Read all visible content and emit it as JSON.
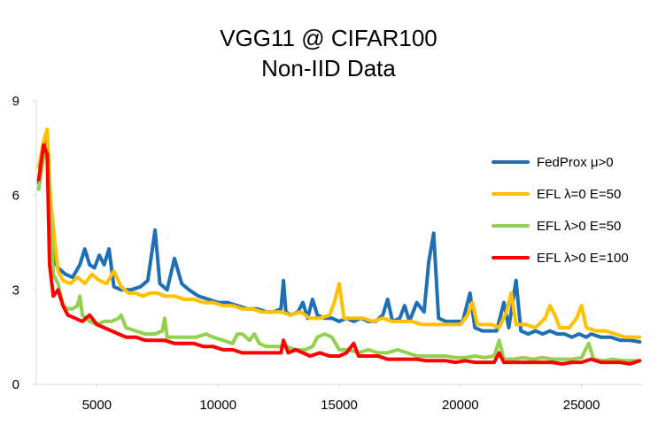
{
  "chart_data": {
    "type": "line",
    "title": "VGG11 @ CIFAR100",
    "subtitle": "Non-IID Data",
    "xlabel": "",
    "ylabel": "",
    "xlim": [
      2500,
      27500
    ],
    "ylim": [
      0,
      9
    ],
    "xticks": [
      5000,
      10000,
      15000,
      20000,
      25000
    ],
    "yticks": [
      0,
      3,
      6,
      9
    ],
    "grid": false,
    "legend_position": "right",
    "series": [
      {
        "name": "FedProx μ>0",
        "color": "#1f6fb5",
        "points": [
          [
            2600,
            6.4
          ],
          [
            2800,
            7.4
          ],
          [
            2950,
            7.8
          ],
          [
            3100,
            5.5
          ],
          [
            3200,
            4.0
          ],
          [
            3400,
            3.7
          ],
          [
            3700,
            3.5
          ],
          [
            4000,
            3.4
          ],
          [
            4300,
            3.8
          ],
          [
            4500,
            4.3
          ],
          [
            4700,
            3.8
          ],
          [
            4900,
            3.7
          ],
          [
            5100,
            4.1
          ],
          [
            5300,
            3.8
          ],
          [
            5500,
            4.3
          ],
          [
            5700,
            3.1
          ],
          [
            6000,
            3.0
          ],
          [
            6400,
            3.0
          ],
          [
            6800,
            3.1
          ],
          [
            7100,
            3.3
          ],
          [
            7400,
            4.9
          ],
          [
            7600,
            3.2
          ],
          [
            7900,
            3.0
          ],
          [
            8200,
            4.0
          ],
          [
            8500,
            3.2
          ],
          [
            8800,
            3.0
          ],
          [
            9200,
            2.8
          ],
          [
            9600,
            2.7
          ],
          [
            10000,
            2.6
          ],
          [
            10400,
            2.6
          ],
          [
            10800,
            2.5
          ],
          [
            11200,
            2.4
          ],
          [
            11600,
            2.4
          ],
          [
            12000,
            2.3
          ],
          [
            12300,
            2.3
          ],
          [
            12600,
            2.4
          ],
          [
            12700,
            3.3
          ],
          [
            12800,
            2.3
          ],
          [
            13000,
            2.2
          ],
          [
            13300,
            2.3
          ],
          [
            13500,
            2.6
          ],
          [
            13700,
            2.1
          ],
          [
            13900,
            2.7
          ],
          [
            14100,
            2.2
          ],
          [
            14400,
            2.1
          ],
          [
            14700,
            2.1
          ],
          [
            15000,
            2.0
          ],
          [
            15300,
            2.1
          ],
          [
            15600,
            2.0
          ],
          [
            15900,
            2.1
          ],
          [
            16200,
            2.0
          ],
          [
            16500,
            2.0
          ],
          [
            16800,
            2.2
          ],
          [
            17000,
            2.7
          ],
          [
            17200,
            2.0
          ],
          [
            17500,
            2.1
          ],
          [
            17700,
            2.5
          ],
          [
            17900,
            2.0
          ],
          [
            18200,
            2.6
          ],
          [
            18500,
            2.3
          ],
          [
            18700,
            3.9
          ],
          [
            18900,
            4.8
          ],
          [
            19100,
            2.1
          ],
          [
            19400,
            2.0
          ],
          [
            19800,
            2.0
          ],
          [
            20100,
            2.0
          ],
          [
            20400,
            2.9
          ],
          [
            20600,
            1.8
          ],
          [
            20900,
            1.7
          ],
          [
            21200,
            1.7
          ],
          [
            21500,
            1.7
          ],
          [
            21800,
            2.6
          ],
          [
            22000,
            1.8
          ],
          [
            22300,
            3.3
          ],
          [
            22500,
            1.7
          ],
          [
            22800,
            1.6
          ],
          [
            23100,
            1.7
          ],
          [
            23400,
            1.6
          ],
          [
            23700,
            1.7
          ],
          [
            24000,
            1.6
          ],
          [
            24300,
            1.6
          ],
          [
            24600,
            1.5
          ],
          [
            24900,
            1.6
          ],
          [
            25200,
            1.5
          ],
          [
            25400,
            1.6
          ],
          [
            25800,
            1.5
          ],
          [
            26200,
            1.5
          ],
          [
            26600,
            1.4
          ],
          [
            27000,
            1.4
          ],
          [
            27400,
            1.35
          ]
        ]
      },
      {
        "name": "EFL λ=0 E=50",
        "color": "#ffc000",
        "points": [
          [
            2600,
            6.9
          ],
          [
            2800,
            7.7
          ],
          [
            2950,
            8.1
          ],
          [
            3100,
            5.8
          ],
          [
            3250,
            4.6
          ],
          [
            3400,
            3.6
          ],
          [
            3600,
            3.3
          ],
          [
            3900,
            3.2
          ],
          [
            4200,
            3.4
          ],
          [
            4500,
            3.2
          ],
          [
            4800,
            3.5
          ],
          [
            5100,
            3.3
          ],
          [
            5400,
            3.2
          ],
          [
            5700,
            3.6
          ],
          [
            6000,
            3.1
          ],
          [
            6300,
            2.9
          ],
          [
            6600,
            2.9
          ],
          [
            6900,
            2.8
          ],
          [
            7200,
            2.9
          ],
          [
            7500,
            2.9
          ],
          [
            7800,
            2.8
          ],
          [
            8200,
            2.8
          ],
          [
            8600,
            2.7
          ],
          [
            9000,
            2.7
          ],
          [
            9400,
            2.6
          ],
          [
            9800,
            2.6
          ],
          [
            10200,
            2.5
          ],
          [
            10600,
            2.5
          ],
          [
            11000,
            2.4
          ],
          [
            11400,
            2.4
          ],
          [
            11800,
            2.3
          ],
          [
            12200,
            2.3
          ],
          [
            12600,
            2.3
          ],
          [
            13000,
            2.2
          ],
          [
            13400,
            2.3
          ],
          [
            13800,
            2.1
          ],
          [
            14200,
            2.1
          ],
          [
            14600,
            2.2
          ],
          [
            14800,
            2.6
          ],
          [
            15000,
            3.2
          ],
          [
            15200,
            2.1
          ],
          [
            15600,
            2.1
          ],
          [
            16000,
            2.1
          ],
          [
            16400,
            2.0
          ],
          [
            16800,
            2.1
          ],
          [
            17200,
            2.0
          ],
          [
            17600,
            2.0
          ],
          [
            18000,
            2.0
          ],
          [
            18400,
            1.9
          ],
          [
            18800,
            1.9
          ],
          [
            19200,
            1.9
          ],
          [
            19600,
            1.9
          ],
          [
            20000,
            1.9
          ],
          [
            20300,
            2.2
          ],
          [
            20500,
            2.6
          ],
          [
            20700,
            1.9
          ],
          [
            21000,
            1.9
          ],
          [
            21300,
            1.9
          ],
          [
            21600,
            1.8
          ],
          [
            21900,
            2.3
          ],
          [
            22100,
            2.9
          ],
          [
            22300,
            1.9
          ],
          [
            22700,
            1.9
          ],
          [
            23100,
            1.8
          ],
          [
            23500,
            2.1
          ],
          [
            23700,
            2.5
          ],
          [
            23900,
            2.2
          ],
          [
            24100,
            1.8
          ],
          [
            24500,
            1.8
          ],
          [
            24800,
            2.1
          ],
          [
            25000,
            2.5
          ],
          [
            25200,
            1.8
          ],
          [
            25600,
            1.7
          ],
          [
            26000,
            1.7
          ],
          [
            26400,
            1.6
          ],
          [
            26800,
            1.5
          ],
          [
            27400,
            1.5
          ]
        ]
      },
      {
        "name": "EFL λ>0 E=50",
        "color": "#92d050",
        "points": [
          [
            2600,
            6.2
          ],
          [
            2800,
            7.2
          ],
          [
            2950,
            7.4
          ],
          [
            3100,
            5.0
          ],
          [
            3200,
            3.5
          ],
          [
            3400,
            3.2
          ],
          [
            3600,
            2.5
          ],
          [
            3800,
            2.4
          ],
          [
            4000,
            2.4
          ],
          [
            4200,
            2.5
          ],
          [
            4300,
            2.8
          ],
          [
            4400,
            2.2
          ],
          [
            4700,
            2.0
          ],
          [
            5000,
            1.9
          ],
          [
            5300,
            2.0
          ],
          [
            5600,
            2.0
          ],
          [
            5900,
            2.1
          ],
          [
            6000,
            2.2
          ],
          [
            6200,
            1.8
          ],
          [
            6600,
            1.7
          ],
          [
            7000,
            1.6
          ],
          [
            7400,
            1.6
          ],
          [
            7700,
            1.7
          ],
          [
            7800,
            2.1
          ],
          [
            7900,
            1.5
          ],
          [
            8300,
            1.5
          ],
          [
            8700,
            1.5
          ],
          [
            9100,
            1.5
          ],
          [
            9500,
            1.6
          ],
          [
            9800,
            1.5
          ],
          [
            10200,
            1.4
          ],
          [
            10600,
            1.3
          ],
          [
            10800,
            1.6
          ],
          [
            11000,
            1.6
          ],
          [
            11300,
            1.4
          ],
          [
            11500,
            1.6
          ],
          [
            11700,
            1.3
          ],
          [
            12000,
            1.2
          ],
          [
            12400,
            1.2
          ],
          [
            12800,
            1.2
          ],
          [
            13200,
            1.1
          ],
          [
            13600,
            1.1
          ],
          [
            13900,
            1.2
          ],
          [
            14100,
            1.5
          ],
          [
            14400,
            1.6
          ],
          [
            14700,
            1.5
          ],
          [
            15000,
            1.1
          ],
          [
            15400,
            1.1
          ],
          [
            15800,
            1.0
          ],
          [
            16200,
            1.1
          ],
          [
            16600,
            1.0
          ],
          [
            17000,
            1.0
          ],
          [
            17400,
            1.1
          ],
          [
            17800,
            1.0
          ],
          [
            18200,
            0.9
          ],
          [
            18600,
            0.9
          ],
          [
            19000,
            0.9
          ],
          [
            19400,
            0.9
          ],
          [
            19800,
            0.85
          ],
          [
            20200,
            0.85
          ],
          [
            20600,
            0.9
          ],
          [
            21000,
            0.85
          ],
          [
            21400,
            0.9
          ],
          [
            21600,
            1.4
          ],
          [
            21800,
            0.8
          ],
          [
            22200,
            0.8
          ],
          [
            22600,
            0.85
          ],
          [
            23000,
            0.8
          ],
          [
            23400,
            0.85
          ],
          [
            23800,
            0.8
          ],
          [
            24200,
            0.8
          ],
          [
            24600,
            0.8
          ],
          [
            25000,
            0.85
          ],
          [
            25300,
            1.3
          ],
          [
            25500,
            0.8
          ],
          [
            25900,
            0.75
          ],
          [
            26300,
            0.8
          ],
          [
            26700,
            0.75
          ],
          [
            27400,
            0.75
          ]
        ]
      },
      {
        "name": "EFL λ>0 E=100",
        "color": "#ff0000",
        "points": [
          [
            2600,
            6.5
          ],
          [
            2800,
            7.6
          ],
          [
            2950,
            7.3
          ],
          [
            3050,
            3.8
          ],
          [
            3200,
            2.8
          ],
          [
            3400,
            3.0
          ],
          [
            3600,
            2.5
          ],
          [
            3800,
            2.2
          ],
          [
            4100,
            2.1
          ],
          [
            4400,
            2.0
          ],
          [
            4700,
            2.2
          ],
          [
            5000,
            1.9
          ],
          [
            5300,
            1.8
          ],
          [
            5600,
            1.7
          ],
          [
            5900,
            1.6
          ],
          [
            6200,
            1.5
          ],
          [
            6600,
            1.5
          ],
          [
            7000,
            1.4
          ],
          [
            7400,
            1.4
          ],
          [
            7800,
            1.4
          ],
          [
            8200,
            1.3
          ],
          [
            8600,
            1.3
          ],
          [
            9000,
            1.3
          ],
          [
            9400,
            1.2
          ],
          [
            9800,
            1.2
          ],
          [
            10200,
            1.1
          ],
          [
            10600,
            1.1
          ],
          [
            11000,
            1.0
          ],
          [
            11400,
            1.0
          ],
          [
            11800,
            1.0
          ],
          [
            12200,
            1.0
          ],
          [
            12600,
            1.0
          ],
          [
            12700,
            1.4
          ],
          [
            12900,
            1.0
          ],
          [
            13200,
            1.1
          ],
          [
            13500,
            1.0
          ],
          [
            13800,
            0.9
          ],
          [
            14200,
            1.0
          ],
          [
            14600,
            0.9
          ],
          [
            15000,
            0.9
          ],
          [
            15300,
            1.0
          ],
          [
            15600,
            1.3
          ],
          [
            15800,
            0.9
          ],
          [
            16200,
            0.9
          ],
          [
            16600,
            0.9
          ],
          [
            17000,
            0.8
          ],
          [
            17400,
            0.8
          ],
          [
            17800,
            0.8
          ],
          [
            18200,
            0.8
          ],
          [
            18600,
            0.75
          ],
          [
            19000,
            0.75
          ],
          [
            19400,
            0.75
          ],
          [
            19800,
            0.7
          ],
          [
            20200,
            0.75
          ],
          [
            20600,
            0.7
          ],
          [
            21000,
            0.7
          ],
          [
            21400,
            0.7
          ],
          [
            21600,
            1.0
          ],
          [
            21800,
            0.7
          ],
          [
            22200,
            0.7
          ],
          [
            22600,
            0.7
          ],
          [
            23000,
            0.7
          ],
          [
            23400,
            0.7
          ],
          [
            23800,
            0.7
          ],
          [
            24200,
            0.65
          ],
          [
            24600,
            0.7
          ],
          [
            25000,
            0.7
          ],
          [
            25400,
            0.8
          ],
          [
            25800,
            0.7
          ],
          [
            26200,
            0.7
          ],
          [
            26600,
            0.7
          ],
          [
            27000,
            0.65
          ],
          [
            27400,
            0.75
          ]
        ]
      }
    ]
  }
}
